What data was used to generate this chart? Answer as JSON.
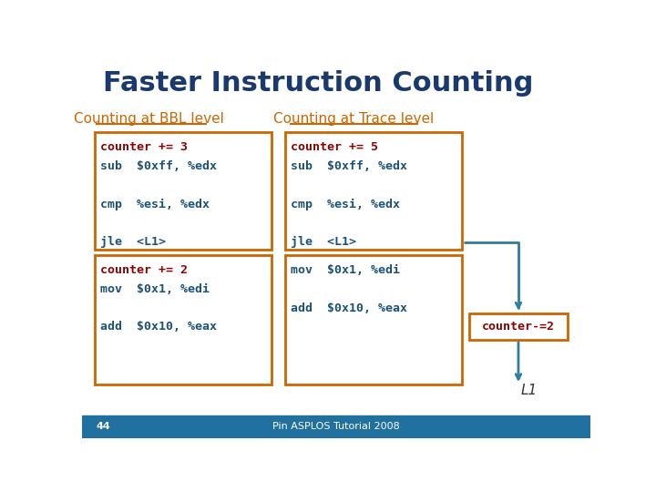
{
  "title": "Faster Instruction Counting",
  "title_color": "#1a3a6e",
  "title_fontsize": 22,
  "bg_color": "#ffffff",
  "footer_bg": "#2070a0",
  "footer_text": "Pin ASPLOS Tutorial 2008",
  "footer_number": "44",
  "footer_color": "#ffffff",
  "bbl_heading": "Counting at BBL level",
  "trace_heading": "Counting at Trace level",
  "heading_color": "#cc6600",
  "box_border_color": "#cc6600",
  "code_color_counter": "#8b0000",
  "code_color_asm": "#1a5276",
  "bbl_box1_lines": [
    "counter += 3",
    "sub  $0xff, %edx",
    "",
    "cmp  %esi, %edx",
    "",
    "jle  <L1>"
  ],
  "bbl_box2_lines": [
    "counter += 2",
    "mov  $0x1, %edi",
    "",
    "add  $0x10, %eax"
  ],
  "trace_box1_lines": [
    "counter += 5",
    "sub  $0xff, %edx",
    "",
    "cmp  %esi, %edx",
    "",
    "jle  <L1>"
  ],
  "trace_box2_lines": [
    "mov  $0x1, %edi",
    "",
    "add  $0x10, %eax"
  ],
  "counter_minus_text": "counter-=2",
  "arrow_color": "#2e7d9e",
  "l1_label": "L1"
}
